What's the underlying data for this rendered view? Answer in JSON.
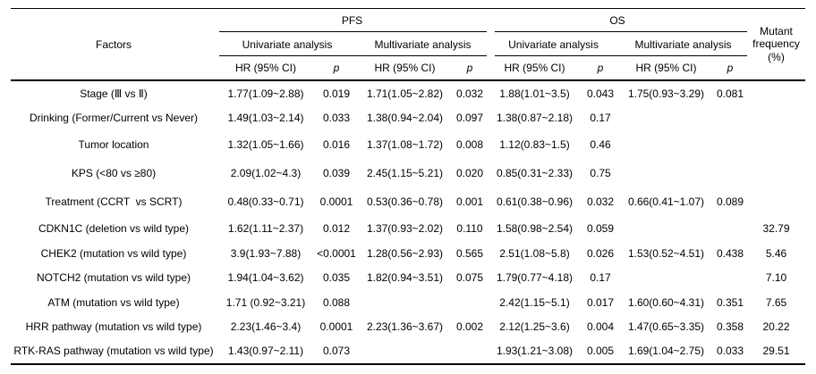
{
  "table": {
    "header": {
      "factors": "Factors",
      "pfs": "PFS",
      "os": "OS",
      "mutant_frequency": "Mutant frequency (%)",
      "univariate": "Univariate analysis",
      "multivariate": "Multivariate analysis",
      "hr_ci": "HR (95% CI)",
      "p": "p"
    },
    "rows": [
      {
        "factor": "Stage (Ⅲ vs Ⅱ)",
        "pfs_uni_hr": "1.77(1.09~2.88)",
        "pfs_uni_p": "0.019",
        "pfs_multi_hr": "1.71(1.05~2.82)",
        "pfs_multi_p": "0.032",
        "os_uni_hr": "1.88(1.01~3.5)",
        "os_uni_p": "0.043",
        "os_multi_hr": "1.75(0.93~3.29)",
        "os_multi_p": "0.081",
        "mutant_freq": ""
      },
      {
        "factor": "Drinking (Former/Current vs Never)",
        "pfs_uni_hr": "1.49(1.03~2.14)",
        "pfs_uni_p": "0.033",
        "pfs_multi_hr": "1.38(0.94~2.04)",
        "pfs_multi_p": "0.097",
        "os_uni_hr": "1.38(0.87~2.18)",
        "os_uni_p": "0.17",
        "os_multi_hr": "",
        "os_multi_p": "",
        "mutant_freq": ""
      },
      {
        "factor": "Tumor location",
        "pfs_uni_hr": "1.32(1.05~1.66)",
        "pfs_uni_p": "0.016",
        "pfs_multi_hr": "1.37(1.08~1.72)",
        "pfs_multi_p": "0.008",
        "os_uni_hr": "1.12(0.83~1.5)",
        "os_uni_p": "0.46",
        "os_multi_hr": "",
        "os_multi_p": "",
        "mutant_freq": ""
      },
      {
        "factor": "KPS (<80 vs ≥80)",
        "pfs_uni_hr": "2.09(1.02~4.3)",
        "pfs_uni_p": "0.039",
        "pfs_multi_hr": "2.45(1.15~5.21)",
        "pfs_multi_p": "0.020",
        "os_uni_hr": "0.85(0.31~2.33)",
        "os_uni_p": "0.75",
        "os_multi_hr": "",
        "os_multi_p": "",
        "mutant_freq": ""
      },
      {
        "factor": "Treatment (CCRT  vs SCRT)",
        "pfs_uni_hr": "0.48(0.33~0.71)",
        "pfs_uni_p": "0.0001",
        "pfs_multi_hr": "0.53(0.36~0.78)",
        "pfs_multi_p": "0.001",
        "os_uni_hr": "0.61(0.38~0.96)",
        "os_uni_p": "0.032",
        "os_multi_hr": "0.66(0.41~1.07)",
        "os_multi_p": "0.089",
        "mutant_freq": ""
      },
      {
        "factor": "CDKN1C (deletion vs wild type)",
        "pfs_uni_hr": "1.62(1.11~2.37)",
        "pfs_uni_p": "0.012",
        "pfs_multi_hr": "1.37(0.93~2.02)",
        "pfs_multi_p": "0.110",
        "os_uni_hr": "1.58(0.98~2.54)",
        "os_uni_p": "0.059",
        "os_multi_hr": "",
        "os_multi_p": "",
        "mutant_freq": "32.79"
      },
      {
        "factor": "CHEK2 (mutation vs wild type)",
        "pfs_uni_hr": "3.9(1.93~7.88)",
        "pfs_uni_p": "<0.0001",
        "pfs_multi_hr": "1.28(0.56~2.93)",
        "pfs_multi_p": "0.565",
        "os_uni_hr": "2.51(1.08~5.8)",
        "os_uni_p": "0.026",
        "os_multi_hr": "1.53(0.52~4.51)",
        "os_multi_p": "0.438",
        "mutant_freq": "5.46"
      },
      {
        "factor": "NOTCH2 (mutation vs wild type)",
        "pfs_uni_hr": "1.94(1.04~3.62)",
        "pfs_uni_p": "0.035",
        "pfs_multi_hr": "1.82(0.94~3.51)",
        "pfs_multi_p": "0.075",
        "os_uni_hr": "1.79(0.77~4.18)",
        "os_uni_p": "0.17",
        "os_multi_hr": "",
        "os_multi_p": "",
        "mutant_freq": "7.10"
      },
      {
        "factor": "ATM (mutation vs wild type)",
        "pfs_uni_hr": "1.71 (0.92~3.21)",
        "pfs_uni_p": "0.088",
        "pfs_multi_hr": "",
        "pfs_multi_p": "",
        "os_uni_hr": "2.42(1.15~5.1)",
        "os_uni_p": "0.017",
        "os_multi_hr": "1.60(0.60~4.31)",
        "os_multi_p": "0.351",
        "mutant_freq": "7.65"
      },
      {
        "factor": "HRR pathway (mutation vs wild type)",
        "pfs_uni_hr": "2.23(1.46~3.4)",
        "pfs_uni_p": "0.0001",
        "pfs_multi_hr": "2.23(1.36~3.67)",
        "pfs_multi_p": "0.002",
        "os_uni_hr": "2.12(1.25~3.6)",
        "os_uni_p": "0.004",
        "os_multi_hr": "1.47(0.65~3.35)",
        "os_multi_p": "0.358",
        "mutant_freq": "20.22"
      },
      {
        "factor": "RTK-RAS pathway (mutation vs wild type)",
        "pfs_uni_hr": "1.43(0.97~2.11)",
        "pfs_uni_p": "0.073",
        "pfs_multi_hr": "",
        "pfs_multi_p": "",
        "os_uni_hr": "1.93(1.21~3.08)",
        "os_uni_p": "0.005",
        "os_multi_hr": "1.69(1.04~2.75)",
        "os_multi_p": "0.033",
        "mutant_freq": "29.51"
      }
    ]
  }
}
